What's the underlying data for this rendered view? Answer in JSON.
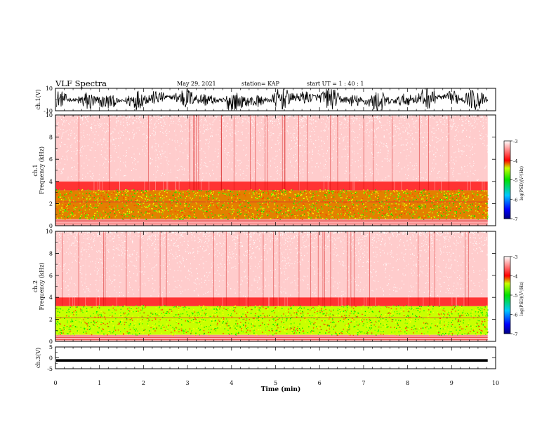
{
  "header": {
    "title": "VLF Spectra",
    "date": "May 29, 2021",
    "station": "station= KAP",
    "start": "start  UT =   1 : 40 : 1"
  },
  "chart_data": [
    {
      "type": "line",
      "name": "ch1-waveform",
      "ylabel": "ch.1(V)",
      "ylim": [
        -10,
        10
      ],
      "yticks": [
        -10,
        10
      ],
      "xlim": [
        0,
        10
      ],
      "envelope_min_max_V": [
        -8,
        8
      ]
    },
    {
      "type": "heatmap",
      "name": "ch1-spectrogram",
      "ylabel": "ch.1\nFrequency (kHz)",
      "ylim": [
        0,
        10
      ],
      "yticks": [
        0,
        2,
        4,
        6,
        8,
        10
      ],
      "xlim": [
        0,
        9.82
      ],
      "bands": [
        {
          "from_kHz": 0.0,
          "to_kHz": 0.6,
          "level": -3.3
        },
        {
          "from_kHz": 0.6,
          "to_kHz": 3.2,
          "level": -4.2
        },
        {
          "from_kHz": 3.2,
          "to_kHz": 4.0,
          "level": -3.8
        },
        {
          "from_kHz": 4.0,
          "to_kHz": 10.0,
          "level": -3.2
        }
      ],
      "colorbar": {
        "label": "log(PSD)(V²/Hz)",
        "range": [
          -7,
          -3
        ],
        "ticks": [
          -7,
          -6,
          -5,
          -4,
          -3
        ]
      }
    },
    {
      "type": "heatmap",
      "name": "ch2-spectrogram",
      "ylabel": "ch.2\nFrequency (kHz)",
      "ylim": [
        0,
        10
      ],
      "yticks": [
        0,
        2,
        4,
        6,
        8,
        10
      ],
      "xlim": [
        0,
        9.82
      ],
      "bands": [
        {
          "from_kHz": 0.0,
          "to_kHz": 0.6,
          "level": -3.3
        },
        {
          "from_kHz": 0.6,
          "to_kHz": 3.2,
          "level": -4.4
        },
        {
          "from_kHz": 3.2,
          "to_kHz": 4.0,
          "level": -3.8
        },
        {
          "from_kHz": 4.0,
          "to_kHz": 10.0,
          "level": -3.2
        }
      ],
      "colorbar": {
        "label": "log(PSD)(V²/Hz)",
        "range": [
          -7,
          -3
        ],
        "ticks": [
          -7,
          -6,
          -5,
          -4,
          -3
        ]
      }
    },
    {
      "type": "line",
      "name": "ch3-waveform",
      "ylabel": "ch.3(V)",
      "ylim": [
        -5,
        5
      ],
      "yticks": [
        -5,
        0,
        5
      ],
      "xlim": [
        0,
        10
      ],
      "envelope_min_max_V": [
        -1.8,
        -0.6
      ]
    }
  ],
  "xaxis": {
    "label": "Time (min)",
    "ticks": [
      0,
      1,
      2,
      3,
      4,
      5,
      6,
      7,
      8,
      9,
      10
    ],
    "xlim": [
      0,
      10
    ]
  }
}
